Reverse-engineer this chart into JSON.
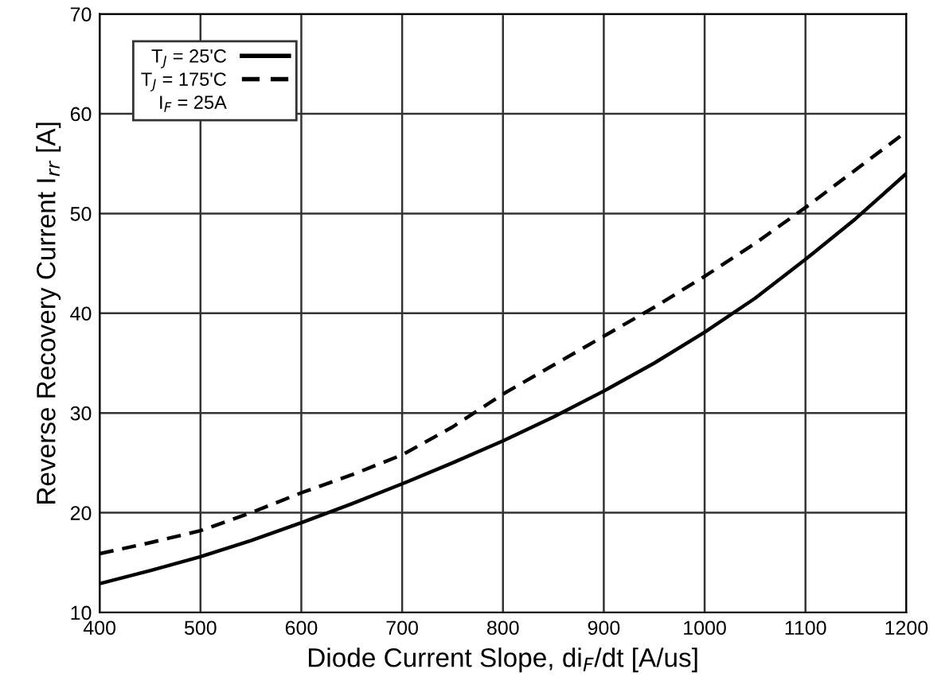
{
  "chart_data": {
    "type": "line",
    "xlabel": "Diode Current Slope, di$_{F}$/dt [A/us]",
    "ylabel": "Reverse Recovery Current I$_{rr}$ [A]",
    "x": [
      400,
      450,
      500,
      550,
      600,
      650,
      700,
      750,
      800,
      850,
      900,
      950,
      1000,
      1050,
      1100,
      1150,
      1200
    ],
    "series": [
      {
        "name": "T$_{J}$ = 25'C",
        "color": "#000000",
        "line_style": "solid",
        "values": [
          12.9,
          14.2,
          15.6,
          17.2,
          19,
          20.9,
          22.9,
          25,
          27.2,
          29.6,
          32.2,
          35,
          38.1,
          41.5,
          45.4,
          49.5,
          54
        ]
      },
      {
        "name": "T$_{J}$ = 175'C",
        "color": "#000000",
        "line_style": "dashed",
        "values": [
          15.9,
          17,
          18.2,
          20,
          22,
          23.8,
          25.8,
          28.6,
          31.9,
          34.8,
          37.7,
          40.6,
          43.7,
          47,
          50.6,
          54.4,
          58.2
        ]
      }
    ],
    "annotations": [
      "I$_{F}$ = 25A"
    ],
    "xlim": [
      400,
      1200
    ],
    "xticks": [
      400,
      500,
      600,
      700,
      800,
      900,
      1000,
      1100,
      1200
    ],
    "ylim": [
      10,
      70
    ],
    "yticks": [
      10,
      20,
      30,
      40,
      50,
      60,
      70
    ],
    "grid": true,
    "legend": "top left",
    "marker": "none"
  }
}
